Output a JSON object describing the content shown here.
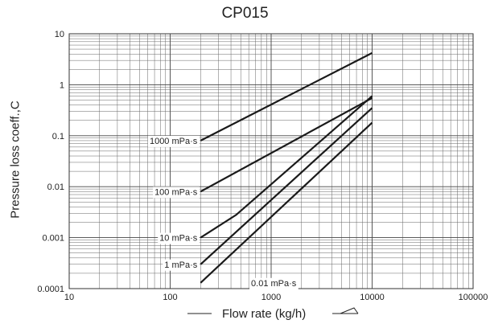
{
  "chart_data": {
    "type": "line",
    "title": "CP015",
    "xlabel": "Flow rate (kg/h)",
    "ylabel": "Pressure loss coeff.,C",
    "xscale": "log",
    "yscale": "log",
    "xlim": [
      10,
      100000
    ],
    "ylim": [
      0.0001,
      10
    ],
    "x_tick_labels": [
      "10",
      "100",
      "1000",
      "10000",
      "100000"
    ],
    "y_tick_labels": [
      "0.0001",
      "0.001",
      "0.01",
      "0.1",
      "1",
      "10"
    ],
    "grid": true,
    "series": [
      {
        "name": "1000 mPa·s",
        "x": [
          200,
          10000
        ],
        "y": [
          0.08,
          4.2
        ]
      },
      {
        "name": "100 mPa·s",
        "x": [
          200,
          10000
        ],
        "y": [
          0.008,
          0.55
        ]
      },
      {
        "name": "10 mPa·s",
        "x": [
          200,
          450,
          10000
        ],
        "y": [
          0.001,
          0.0028,
          0.6
        ]
      },
      {
        "name": "1 mPa·s",
        "x": [
          200,
          10000
        ],
        "y": [
          0.0003,
          0.35
        ]
      },
      {
        "name": "0.01 mPa·s",
        "x": [
          200,
          10000
        ],
        "y": [
          0.00013,
          0.18
        ]
      }
    ]
  }
}
